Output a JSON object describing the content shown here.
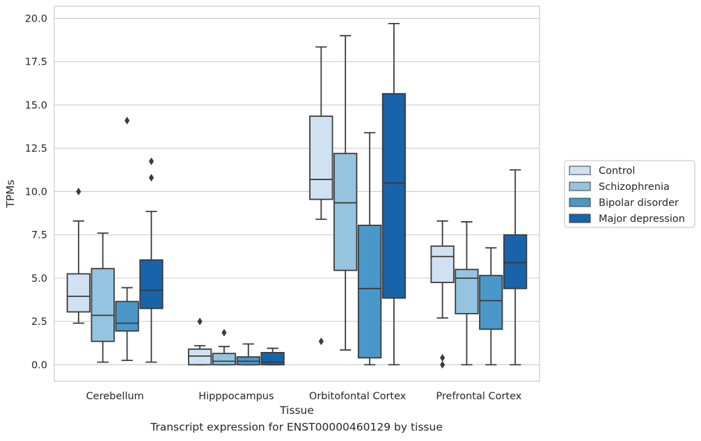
{
  "caption": "Transcript expression for ENST00000460129 by tissue",
  "chart_data": {
    "type": "box",
    "xlabel": "Tissue",
    "ylabel": "TPMs",
    "ylim": [
      -0.95,
      20.7
    ],
    "yticks": [
      0.0,
      2.5,
      5.0,
      7.5,
      10.0,
      12.5,
      15.0,
      17.5,
      20.0
    ],
    "ytick_labels": [
      "0.0",
      "2.5",
      "5.0",
      "7.5",
      "10.0",
      "12.5",
      "15.0",
      "17.5",
      "20.0"
    ],
    "grid": "horizontal",
    "legend_position": "right",
    "categories": [
      "Cerebellum",
      "Hipppocampus",
      "Orbitofontal Cortex",
      "Prefrontal Cortex"
    ],
    "series": [
      {
        "name": "Control",
        "color": "#d0e1f2",
        "boxes": [
          {
            "whislo": 2.4,
            "q1": 3.05,
            "med": 3.95,
            "q3": 5.25,
            "whishi": 8.3,
            "fliers": [
              10.0
            ]
          },
          {
            "whislo": 0.0,
            "q1": 0.0,
            "med": 0.5,
            "q3": 0.9,
            "whishi": 1.1,
            "fliers": [
              2.5
            ]
          },
          {
            "whislo": 8.4,
            "q1": 9.55,
            "med": 10.7,
            "q3": 14.35,
            "whishi": 18.35,
            "fliers": [
              1.35
            ]
          },
          {
            "whislo": 2.7,
            "q1": 4.75,
            "med": 6.25,
            "q3": 6.85,
            "whishi": 8.3,
            "fliers": [
              0.0,
              0.4
            ]
          }
        ]
      },
      {
        "name": "Schizophrenia",
        "color": "#94c4df",
        "boxes": [
          {
            "whislo": 0.15,
            "q1": 1.35,
            "med": 2.85,
            "q3": 5.55,
            "whishi": 7.6,
            "fliers": []
          },
          {
            "whislo": 0.0,
            "q1": 0.0,
            "med": 0.2,
            "q3": 0.65,
            "whishi": 1.05,
            "fliers": [
              1.85
            ]
          },
          {
            "whislo": 0.85,
            "q1": 5.45,
            "med": 9.35,
            "q3": 12.2,
            "whishi": 19.0,
            "fliers": []
          },
          {
            "whislo": 0.0,
            "q1": 2.95,
            "med": 5.0,
            "q3": 5.5,
            "whishi": 8.25,
            "fliers": []
          }
        ]
      },
      {
        "name": "Bipolar disorder",
        "color": "#4a98c9",
        "boxes": [
          {
            "whislo": 0.25,
            "q1": 1.95,
            "med": 2.4,
            "q3": 3.65,
            "whishi": 4.45,
            "fliers": [
              14.1
            ]
          },
          {
            "whislo": 0.0,
            "q1": 0.0,
            "med": 0.2,
            "q3": 0.45,
            "whishi": 1.2,
            "fliers": []
          },
          {
            "whislo": 0.0,
            "q1": 0.4,
            "med": 4.4,
            "q3": 8.05,
            "whishi": 13.4,
            "fliers": []
          },
          {
            "whislo": 0.0,
            "q1": 2.05,
            "med": 3.7,
            "q3": 5.15,
            "whishi": 6.75,
            "fliers": []
          }
        ]
      },
      {
        "name": "Major depression",
        "color": "#1764ab",
        "boxes": [
          {
            "whislo": 0.15,
            "q1": 3.25,
            "med": 4.3,
            "q3": 6.05,
            "whishi": 8.85,
            "fliers": [
              10.8,
              11.75
            ]
          },
          {
            "whislo": 0.0,
            "q1": 0.0,
            "med": 0.15,
            "q3": 0.7,
            "whishi": 0.95,
            "fliers": []
          },
          {
            "whislo": 0.0,
            "q1": 3.85,
            "med": 10.5,
            "q3": 15.65,
            "whishi": 19.7,
            "fliers": []
          },
          {
            "whislo": 0.0,
            "q1": 4.4,
            "med": 5.9,
            "q3": 7.5,
            "whishi": 11.25,
            "fliers": []
          }
        ]
      }
    ]
  }
}
